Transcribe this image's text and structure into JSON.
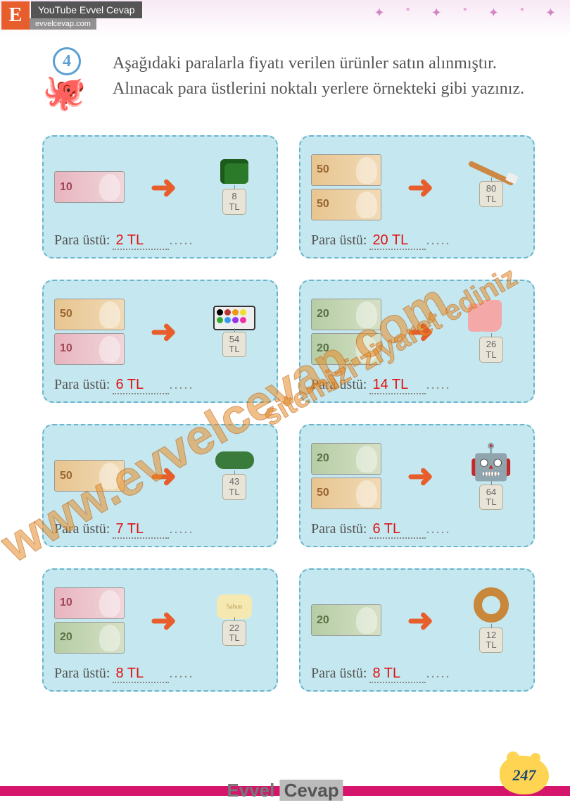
{
  "header": {
    "logo_letter": "E",
    "youtube_label": "YouTube Evvel Cevap",
    "url": "evvelcevap.com"
  },
  "question": {
    "number": "4",
    "text": "Aşağıdaki paralarla fiyatı verilen ürünler satın alınmıştır. Alınacak para üstlerini noktalı yerlere örnekteki gibi yazınız."
  },
  "answer_label": "Para üstü:",
  "currency": "TL",
  "cards": [
    {
      "money": [
        10
      ],
      "price": "8",
      "answer": "2 TL",
      "product": "sharpener"
    },
    {
      "money": [
        50,
        50
      ],
      "price": "80",
      "answer": "20 TL",
      "product": "toothbrush"
    },
    {
      "money": [
        50,
        10
      ],
      "price": "54",
      "answer": "6 TL",
      "product": "palette"
    },
    {
      "money": [
        20,
        20
      ],
      "price": "26",
      "answer": "14 TL",
      "product": "sock"
    },
    {
      "money": [
        50
      ],
      "price": "43",
      "answer": "7 TL",
      "product": "eraser"
    },
    {
      "money": [
        20,
        50
      ],
      "price": "64",
      "answer": "6 TL",
      "product": "robot"
    },
    {
      "money": [
        10,
        20
      ],
      "price": "22",
      "answer": "8 TL",
      "product": "soap"
    },
    {
      "money": [
        20
      ],
      "price": "12",
      "answer": "8 TL",
      "product": "simit"
    }
  ],
  "watermarks": {
    "main": "www.evvelcevap.com",
    "secondary": "sitemizi ziyaret ediniz"
  },
  "footer": {
    "brand1": "Evvel",
    "brand2": "Cevap",
    "page": "247"
  },
  "colors": {
    "card_bg": "#c5e8f0",
    "card_border": "#6ab4cc",
    "arrow": "#e85d2c",
    "answer": "#e01010",
    "page_splat": "#ffd452",
    "footer_bar": "#d4156b"
  }
}
